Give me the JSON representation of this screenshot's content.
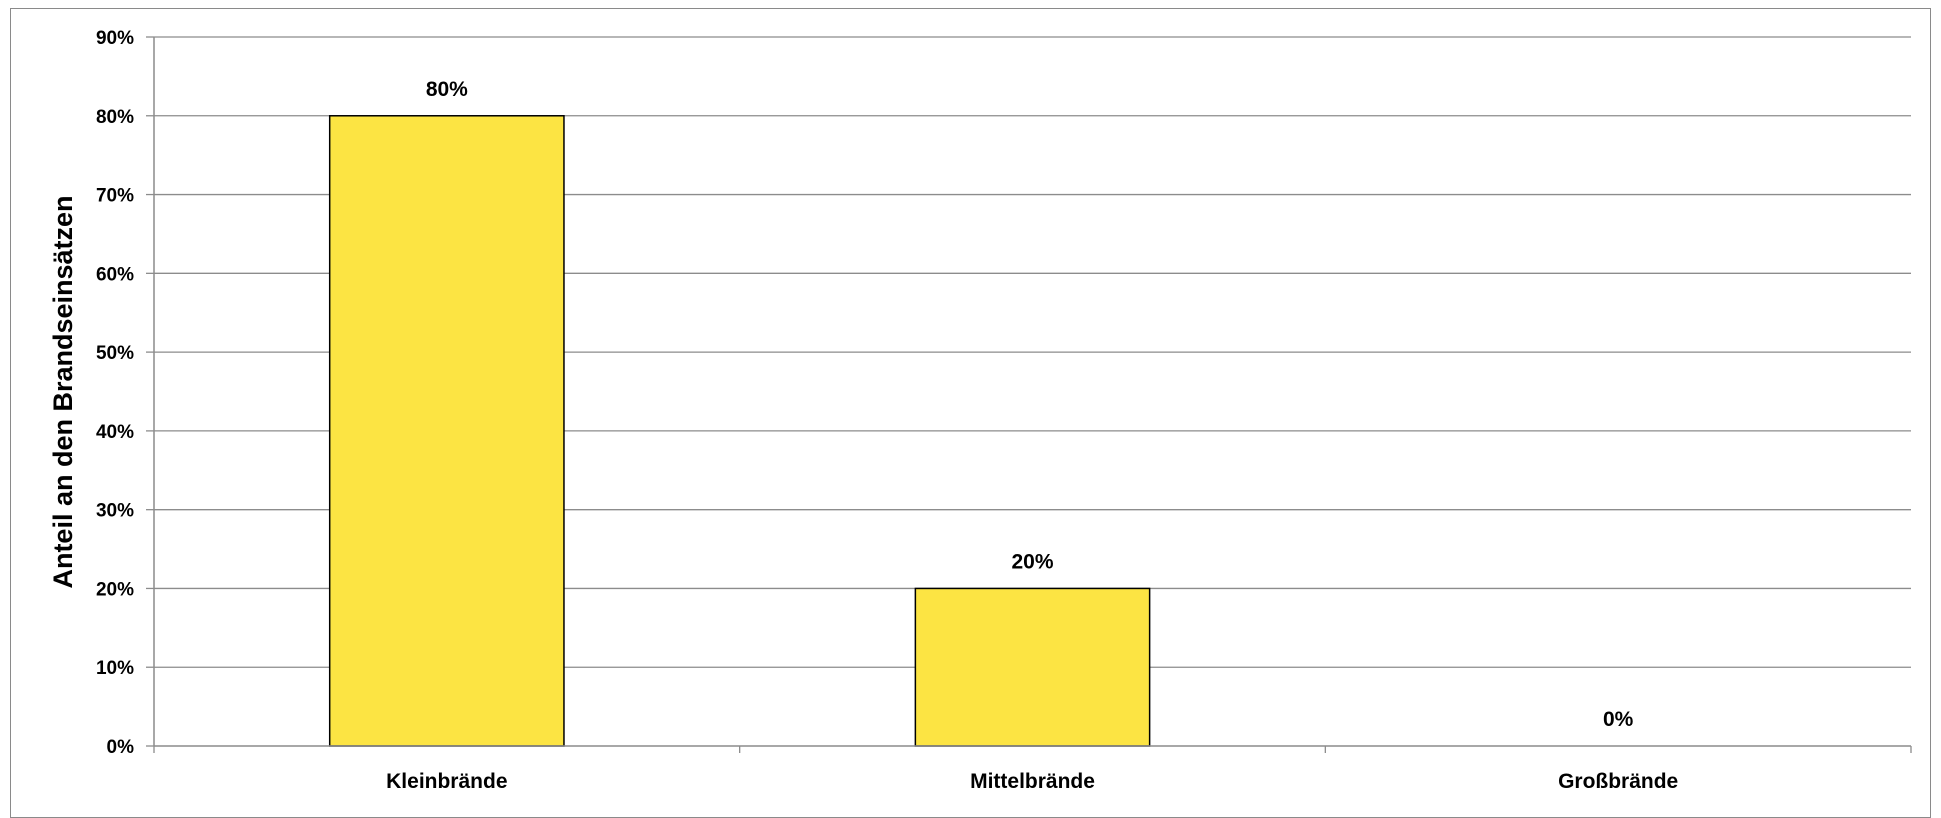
{
  "chart_data": {
    "type": "bar",
    "title": "",
    "xlabel": "",
    "ylabel": "Anteil an den Brandseinsätzen",
    "categories": [
      "Kleinbrände",
      "Mittelbrände",
      "Großbrände"
    ],
    "values": [
      80,
      20,
      0
    ],
    "data_labels": [
      "80%",
      "20%",
      "0%"
    ],
    "ylim": [
      0,
      90
    ],
    "yticks": [
      0,
      10,
      20,
      30,
      40,
      50,
      60,
      70,
      80,
      90
    ],
    "ytick_labels": [
      "0%",
      "10%",
      "20%",
      "30%",
      "40%",
      "50%",
      "60%",
      "70%",
      "80%",
      "90%"
    ],
    "grid": true,
    "legend": "none",
    "colors": {
      "bar_fill": "#FCE443",
      "bar_stroke": "#000000",
      "grid": "#8c8c8c",
      "axis": "#8c8c8c"
    }
  }
}
